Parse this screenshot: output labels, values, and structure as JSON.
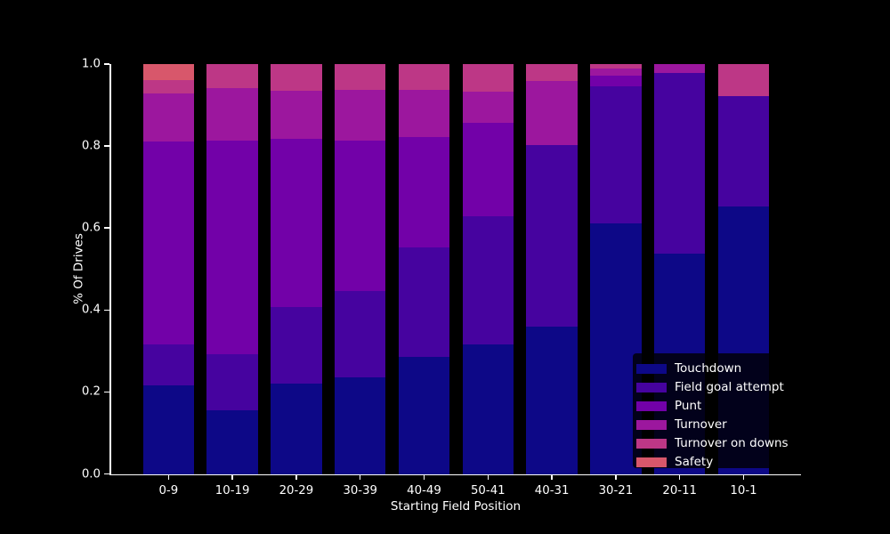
{
  "figure": {
    "background": "#000000",
    "text_color": "#ffffff",
    "axis_color": "#ffffff"
  },
  "chart_data": {
    "type": "bar",
    "stacked": true,
    "orientation": "vertical",
    "title": "",
    "xlabel": "Starting Field Position",
    "ylabel": "% Of Drives",
    "categories": [
      "0-9",
      "10-19",
      "20-29",
      "30-39",
      "40-49",
      "50-41",
      "40-31",
      "30-21",
      "20-11",
      "10-1"
    ],
    "series": [
      {
        "name": "Touchdown",
        "color": "#0d0887",
        "values": [
          0.216,
          0.155,
          0.22,
          0.236,
          0.286,
          0.317,
          0.36,
          0.611,
          0.537,
          0.652
        ]
      },
      {
        "name": "Field goal attempt",
        "color": "#46039f",
        "values": [
          0.099,
          0.137,
          0.187,
          0.21,
          0.266,
          0.311,
          0.442,
          0.334,
          0.442,
          0.27
        ]
      },
      {
        "name": "Punt",
        "color": "#7201a8",
        "values": [
          0.497,
          0.521,
          0.411,
          0.367,
          0.269,
          0.229,
          0.0,
          0.026,
          0.0,
          0.0
        ]
      },
      {
        "name": "Turnover",
        "color": "#9c179e",
        "values": [
          0.117,
          0.129,
          0.118,
          0.125,
          0.117,
          0.076,
          0.156,
          0.019,
          0.021,
          0.0
        ]
      },
      {
        "name": "Turnover on downs",
        "color": "#bd3786",
        "values": [
          0.031,
          0.058,
          0.064,
          0.062,
          0.062,
          0.067,
          0.042,
          0.01,
          0.0,
          0.078
        ]
      },
      {
        "name": "Safety",
        "color": "#d8576b",
        "values": [
          0.04,
          0.0,
          0.0,
          0.0,
          0.0,
          0.0,
          0.0,
          0.0,
          0.0,
          0.0
        ]
      }
    ],
    "ylim": [
      0,
      1
    ],
    "ytick_labels": [
      "0.0",
      "0.2",
      "0.4",
      "0.6",
      "0.8",
      "1.0"
    ],
    "grid": false,
    "legend": {
      "position": "lower right"
    }
  }
}
